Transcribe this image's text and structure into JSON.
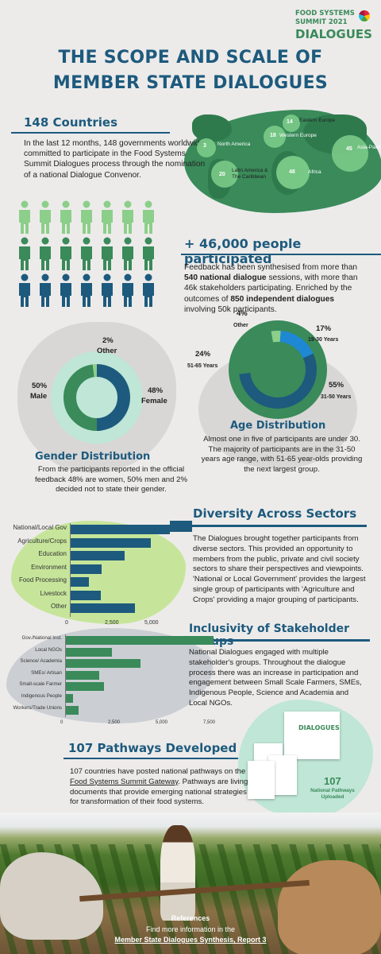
{
  "logo": {
    "line1": "FOOD SYSTEMS",
    "line2": "SUMMIT 2021",
    "line3": "DIALOGUES"
  },
  "title": {
    "line1": "THE SCOPE AND SCALE OF",
    "line2": "MEMBER STATE DIALOGUES"
  },
  "countries": {
    "heading": "148 Countries",
    "text": "In the last 12 months, 148 governments worldwide committed to participate in the Food Systems Summit Dialogues process through the nomination of a national Dialogue Convenor.",
    "regions": [
      {
        "count": "3",
        "name": "North America"
      },
      {
        "count": "14",
        "name": "Eastern Europe"
      },
      {
        "count": "18",
        "name": "Western Europe"
      },
      {
        "count": "45",
        "name": "Asia-Pacif"
      },
      {
        "count": "20",
        "name": "Latin America & The Caribbean"
      },
      {
        "count": "48",
        "name": "Africa"
      }
    ]
  },
  "participants": {
    "heading": "+ 46,000 people participated",
    "text_a": "Feedback has been synthesised from more than ",
    "text_b": "540 national dialogue",
    "text_c": " sessions, with more than 46k stakeholders participating. Enriched by the outcomes of ",
    "text_d": "850 independent dialogues",
    "text_e": " involving 50k participants."
  },
  "gender": {
    "heading": "Gender Distribution",
    "text": "From the participants reported in the official feedback 48% are women, 50% men and 2% decided not to state their gender.",
    "slices": [
      {
        "pct": "50%",
        "label": "Male",
        "value": 50,
        "color": "#1d5a7d"
      },
      {
        "pct": "48%",
        "label": "Female",
        "value": 48,
        "color": "#3a8a5a"
      },
      {
        "pct": "2%",
        "label": "Other",
        "value": 2,
        "color": "#8ccf8a"
      }
    ]
  },
  "age": {
    "heading": "Age Distribution",
    "text": "Almost one in five of participants are under 30. The majority of participants are in the 31-50 years age range, with 51-65 year-olds providing the next largest group.",
    "slices": [
      {
        "pct": "4%",
        "label": "Other",
        "value": 4,
        "color": "#8ccf8a"
      },
      {
        "pct": "17%",
        "label": "19-30 Years",
        "value": 17,
        "color": "#1e88d4"
      },
      {
        "pct": "55%",
        "label": "31-50 Years",
        "value": 55,
        "color": "#1d5a7d"
      },
      {
        "pct": "24%",
        "label": "51-65 Years",
        "value": 24,
        "color": "#3a8a5a"
      }
    ]
  },
  "diversity": {
    "heading": "Diversity Across Sectors",
    "text": "The Dialogues brought together participants from diverse sectors. This provided an opportunity to members from the public, private and civil society sectors to share their perspectives and viewpoints. 'National or Local Government' provides the largest single group of participants with 'Agriculture and Crops' providing a major grouping of participants."
  },
  "inclusivity": {
    "heading": "Inclusivity of Stakeholder Groups",
    "text": "National Dialogues engaged with multiple stakeholder's groups. Throughout the dialogue process there was an increase in participation and engagement between Small Scale Farmers, SMEs, Indigenous People, Science and Academia and Local NGOs."
  },
  "pathways": {
    "heading": "107 Pathways Developed",
    "text_a": "107 countries have posted national pathways on the ",
    "link": "Food Systems Summit Gateway",
    "text_b": ". Pathways are living documents that provide emerging national strategies for transformation of their food systems.",
    "badge_number": "107",
    "badge_label": "National Pathways Uploaded",
    "doc_logo": "DIALOGUES"
  },
  "references": {
    "title": "References",
    "text": "Find more information in the",
    "link": "Member State Dialogues Synthesis, Report 3"
  },
  "chart_data": [
    {
      "type": "bar",
      "title": "Diversity Across Sectors",
      "orientation": "horizontal",
      "categories": [
        "National/Local Gov",
        "Agriculture/Crops",
        "Education",
        "Environment",
        "Food Processing",
        "Livestock",
        "Other"
      ],
      "values": [
        6300,
        5100,
        3450,
        2000,
        1200,
        1950,
        4100
      ],
      "xlim": [
        0,
        6500
      ],
      "xticks": [
        "0",
        "2,500",
        "5,000"
      ],
      "colors": {
        "bar": "#1d5a7d"
      }
    },
    {
      "type": "bar",
      "title": "Inclusivity of Stakeholder Groups",
      "orientation": "horizontal",
      "categories": [
        "Gov./National Inst.",
        "Local NGOs",
        "Science/ Academia",
        "SMEs/ Artisan",
        "Small-scale Farmer",
        "Indigenous People",
        "Workers/Trade Unions"
      ],
      "values": [
        7800,
        2450,
        3950,
        1800,
        2050,
        400,
        700
      ],
      "xlim": [
        0,
        8000
      ],
      "xticks": [
        "0",
        "2,500",
        "5,000",
        "7,500"
      ],
      "colors": {
        "bar": "#3a8a5a"
      }
    },
    {
      "type": "pie",
      "title": "Gender Distribution",
      "labels": [
        "Male",
        "Female",
        "Other"
      ],
      "values": [
        50,
        48,
        2
      ]
    },
    {
      "type": "pie",
      "title": "Age Distribution",
      "labels": [
        "Other",
        "19-30 Years",
        "31-50 Years",
        "51-65 Years"
      ],
      "values": [
        4,
        17,
        55,
        24
      ]
    }
  ],
  "colors": {
    "primary": "#1d5a7d",
    "green": "#3a8a5a",
    "light_green": "#8ccf8a",
    "mint": "#bfe6d6",
    "lime": "#c6e59a"
  }
}
